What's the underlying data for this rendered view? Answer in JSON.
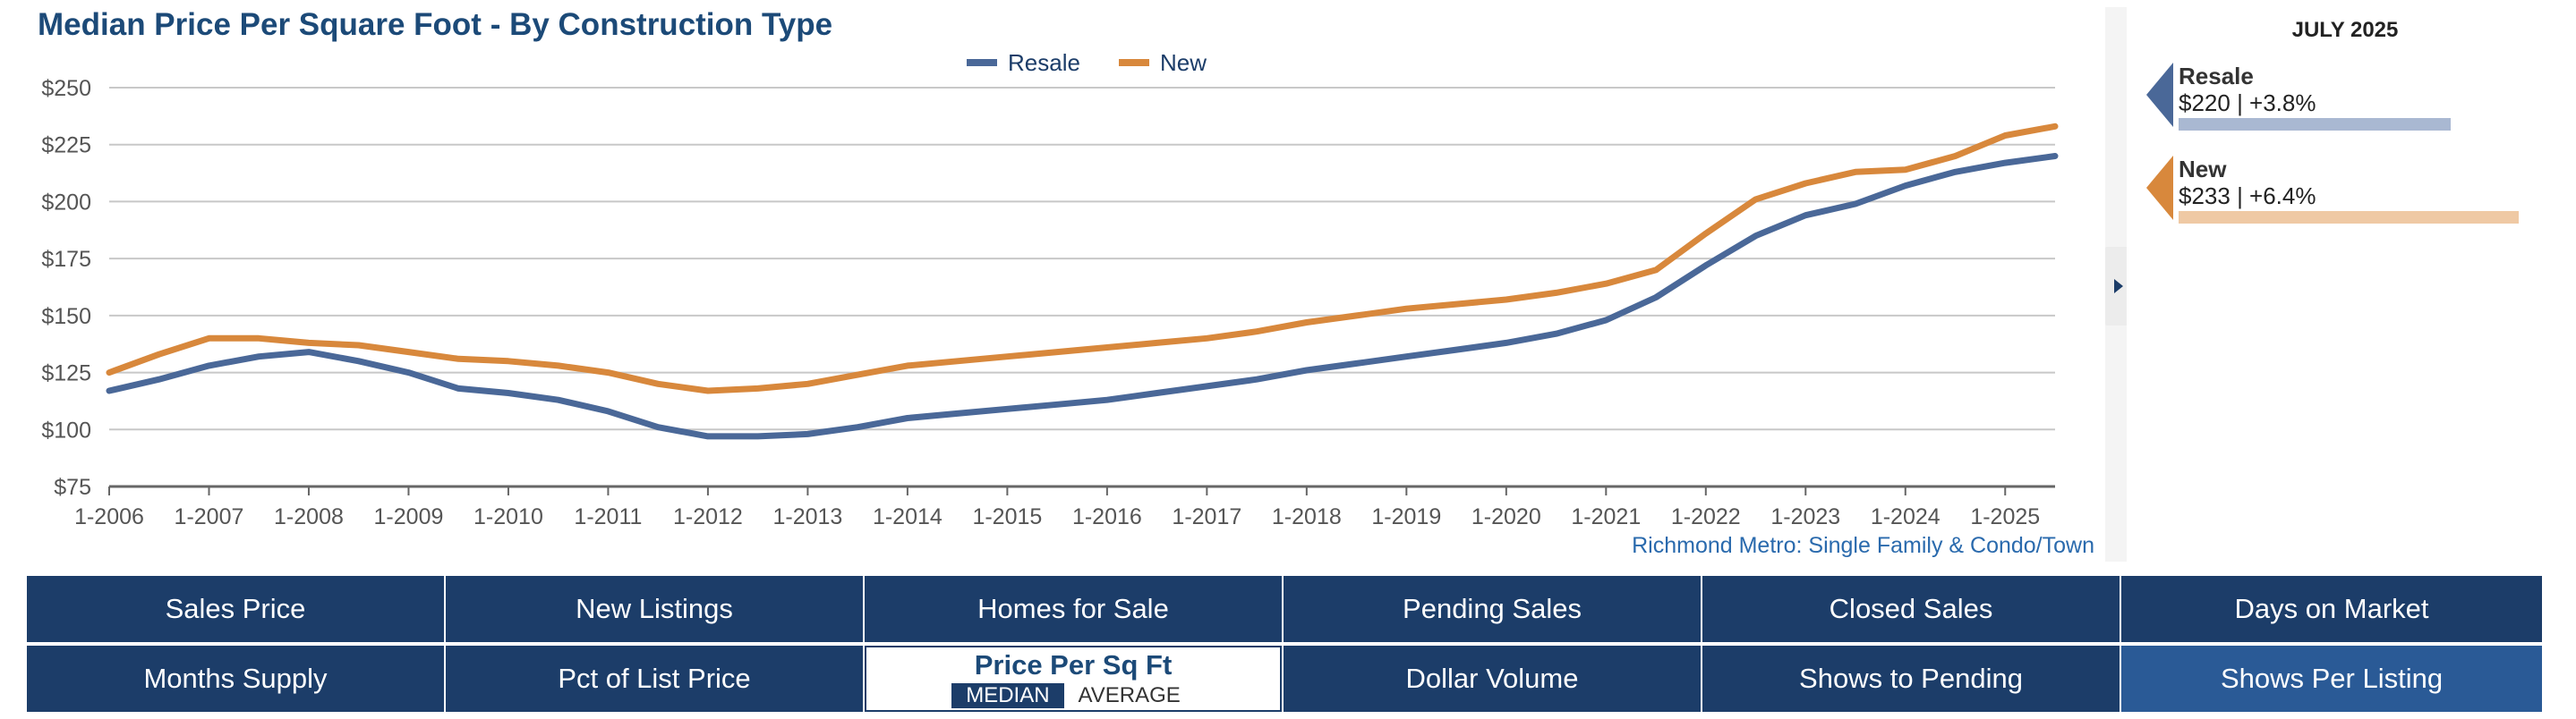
{
  "chart_data": {
    "type": "line",
    "title": "Median Price Per Square Foot - By Construction Type",
    "xlabel": "",
    "ylabel": "",
    "ylim": [
      75,
      250
    ],
    "yticks": [
      "$250",
      "$225",
      "$200",
      "$175",
      "$150",
      "$125",
      "$100",
      "$75"
    ],
    "ytick_values": [
      250,
      225,
      200,
      175,
      150,
      125,
      100,
      75
    ],
    "xticks": [
      "1-2006",
      "1-2007",
      "1-2008",
      "1-2009",
      "1-2010",
      "1-2011",
      "1-2012",
      "1-2013",
      "1-2014",
      "1-2015",
      "1-2016",
      "1-2017",
      "1-2018",
      "1-2019",
      "1-2020",
      "1-2021",
      "1-2022",
      "1-2023",
      "1-2024",
      "1-2025"
    ],
    "xtick_values": [
      2006,
      2007,
      2008,
      2009,
      2010,
      2011,
      2012,
      2013,
      2014,
      2015,
      2016,
      2017,
      2018,
      2019,
      2020,
      2021,
      2022,
      2023,
      2024,
      2025
    ],
    "xlim": [
      2006,
      2025.5
    ],
    "grid": true,
    "legend_position": "top-center",
    "footnote": "Richmond Metro: Single Family & Condo/Town",
    "series": [
      {
        "name": "Resale",
        "color": "#4a6898",
        "x": [
          2006,
          2006.5,
          2007,
          2007.5,
          2008,
          2008.5,
          2009,
          2009.5,
          2010,
          2010.5,
          2011,
          2011.5,
          2012,
          2012.5,
          2013,
          2013.5,
          2014,
          2014.5,
          2015,
          2015.5,
          2016,
          2016.5,
          2017,
          2017.5,
          2018,
          2018.5,
          2019,
          2019.5,
          2020,
          2020.5,
          2021,
          2021.5,
          2022,
          2022.5,
          2023,
          2023.5,
          2024,
          2024.5,
          2025,
          2025.5
        ],
        "values": [
          117,
          122,
          128,
          132,
          134,
          130,
          125,
          118,
          116,
          113,
          108,
          101,
          97,
          97,
          98,
          101,
          105,
          107,
          109,
          111,
          113,
          116,
          119,
          122,
          126,
          129,
          132,
          135,
          138,
          142,
          148,
          158,
          172,
          185,
          194,
          199,
          207,
          213,
          217,
          220
        ]
      },
      {
        "name": "New",
        "color": "#d8883c",
        "x": [
          2006,
          2006.5,
          2007,
          2007.5,
          2008,
          2008.5,
          2009,
          2009.5,
          2010,
          2010.5,
          2011,
          2011.5,
          2012,
          2012.5,
          2013,
          2013.5,
          2014,
          2014.5,
          2015,
          2015.5,
          2016,
          2016.5,
          2017,
          2017.5,
          2018,
          2018.5,
          2019,
          2019.5,
          2020,
          2020.5,
          2021,
          2021.5,
          2022,
          2022.5,
          2023,
          2023.5,
          2024,
          2024.5,
          2025,
          2025.5
        ],
        "values": [
          125,
          133,
          140,
          140,
          138,
          137,
          134,
          131,
          130,
          128,
          125,
          120,
          117,
          118,
          120,
          124,
          128,
          130,
          132,
          134,
          136,
          138,
          140,
          143,
          147,
          150,
          153,
          155,
          157,
          160,
          164,
          170,
          186,
          201,
          208,
          213,
          214,
          220,
          229,
          233
        ]
      }
    ]
  },
  "side_panel": {
    "month": "JULY 2025",
    "items": [
      {
        "name": "Resale",
        "value": "$220 | +3.8%",
        "color": "#4a6898",
        "bar_color": "#a9b8d2",
        "bar_fraction": 0.76
      },
      {
        "name": "New",
        "value": "$233 | +6.4%",
        "color": "#d8883c",
        "bar_color": "#efc9a4",
        "bar_fraction": 0.95
      }
    ]
  },
  "tiles": {
    "row1": [
      "Sales Price",
      "New Listings",
      "Homes for Sale",
      "Pending Sales",
      "Closed Sales",
      "Days on Market"
    ],
    "row2": [
      "Months Supply",
      "Pct of List Price",
      "Price Per Sq Ft",
      "Dollar Volume",
      "Shows to Pending",
      "Shows Per Listing"
    ],
    "active_options": [
      "MEDIAN",
      "AVERAGE"
    ]
  }
}
